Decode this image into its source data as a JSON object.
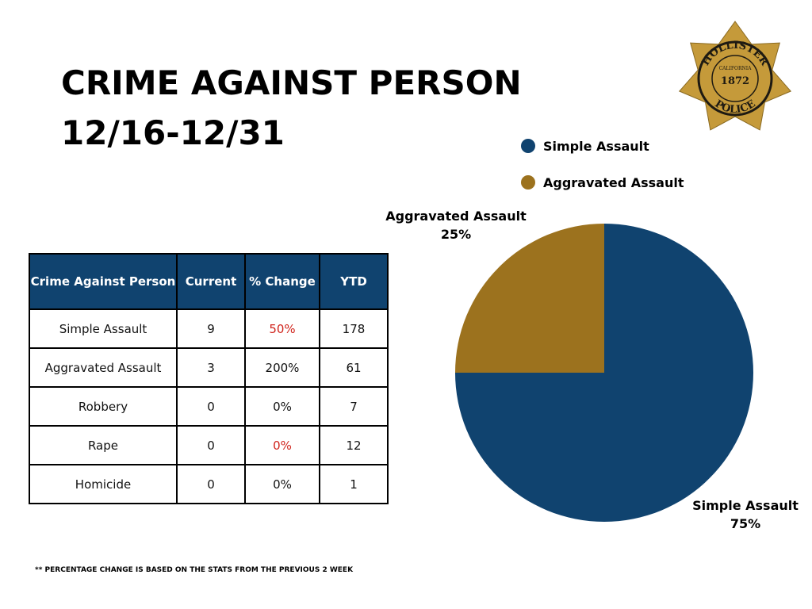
{
  "title": "CRIME AGAINST PERSON",
  "subtitle": "12/16-12/31",
  "badge": {
    "top_text": "HOLLISTER",
    "state": "CALIFORNIA",
    "year": "1872",
    "bottom_text": "POLICE",
    "gold": "#c59a3a",
    "ring": "#1e1a12"
  },
  "colors": {
    "simple_assault": "#10436f",
    "aggravated_assault": "#9c721e",
    "header_bg": "#10436f",
    "negative_text": "#d0241c"
  },
  "table": {
    "headers": {
      "crime": "Crime Against Person",
      "current": "Current",
      "change": "% Change",
      "ytd": "YTD"
    },
    "rows": [
      {
        "crime": "Simple Assault",
        "current": "9",
        "change": "50%",
        "ytd": "178"
      },
      {
        "crime": "Aggravated Assault",
        "current": "3",
        "change": "200%",
        "ytd": "61"
      },
      {
        "crime": "Robbery",
        "current": "0",
        "change": "0%",
        "ytd": "7"
      },
      {
        "crime": "Rape",
        "current": "0",
        "change": "0%",
        "ytd": "12"
      },
      {
        "crime": "Homicide",
        "current": "0",
        "change": "0%",
        "ytd": "1"
      }
    ]
  },
  "footnote": "** PERCENTAGE CHANGE IS BASED ON THE STATS FROM THE PREVIOUS 2 WEEK",
  "chart_data": {
    "type": "pie",
    "legend_position": "top-right",
    "slices": [
      {
        "label": "Simple Assault",
        "value": 75,
        "display": "75%",
        "color": "#10436f"
      },
      {
        "label": "Aggravated Assault",
        "value": 25,
        "display": "25%",
        "color": "#9c721e"
      }
    ]
  }
}
